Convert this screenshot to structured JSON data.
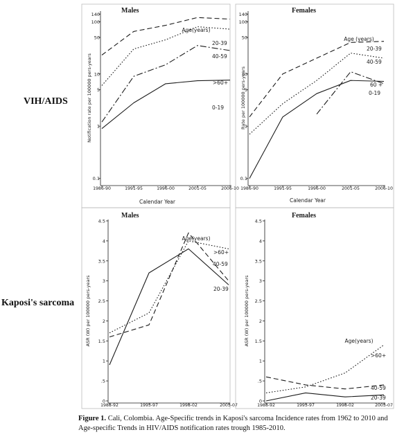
{
  "row_labels": [
    "VIH/AIDS",
    "Kaposi's sarcoma"
  ],
  "caption": {
    "label": "Figure 1.",
    "text": " Cali, Colombia.  Age-Specific trends in Kaposi's sarcoma Incidence rates from 1962 to 2010 and Age-specific Trends in HIV/AIDS notification rates trough 1985-2010."
  },
  "colors": {
    "line": "#1a1a1a",
    "frame": "#bbbbbb",
    "background": "#ffffff"
  },
  "chart_data": [
    {
      "type": "line",
      "panel": "top-left",
      "title": "Males",
      "xlabel": "Calendar Year",
      "ylabel": "Notification rate per 100000 pers-years",
      "yscale": "log",
      "ylim": [
        0.08,
        150
      ],
      "yticks": [
        0.1,
        1,
        5,
        10,
        50,
        100,
        140
      ],
      "categories": [
        "1986-90",
        "1991-95",
        "1996-00",
        "2001-05",
        "2006-10"
      ],
      "legend_title": "Age(years)",
      "series": [
        {
          "name": "20-39",
          "style": "dashed",
          "values": [
            23,
            65,
            85,
            120,
            112
          ]
        },
        {
          "name": "40-59",
          "style": "dotted",
          "values": [
            6,
            30,
            45,
            80,
            72
          ]
        },
        {
          "name": ">60+",
          "style": "dashdot",
          "values": [
            1.2,
            9,
            15,
            35,
            28
          ]
        },
        {
          "name": "0-19",
          "style": "solid",
          "values": [
            0.9,
            2.8,
            6.5,
            7.4,
            7.6
          ]
        }
      ]
    },
    {
      "type": "line",
      "panel": "top-right",
      "title": "Females",
      "xlabel": "Calendar Year",
      "ylabel": "Rate per 100000 pers-years",
      "yscale": "log",
      "ylim": [
        0.08,
        150
      ],
      "yticks": [
        0.1,
        1,
        5,
        10,
        50,
        100,
        140
      ],
      "categories": [
        "1986-90",
        "1991-95",
        "1996-00",
        "2001-05",
        "2006-10"
      ],
      "legend_title": "Age (years)",
      "series": [
        {
          "name": "20-39",
          "style": "dashed",
          "values": [
            1.5,
            10,
            20,
            40,
            42
          ]
        },
        {
          "name": "40-59",
          "style": "dotted",
          "values": [
            0.7,
            2.7,
            7.5,
            25,
            20
          ]
        },
        {
          "name": "60 +",
          "style": "dashdot",
          "values": [
            null,
            null,
            1.7,
            11,
            6.5
          ]
        },
        {
          "name": "0-19",
          "style": "solid",
          "values": [
            0.1,
            1.5,
            4.2,
            7.5,
            7.2
          ]
        }
      ]
    },
    {
      "type": "line",
      "panel": "bottom-left",
      "title": "Males",
      "xlabel": "",
      "ylabel": "ASR (W) per 100000 pers-years",
      "yscale": "linear",
      "ylim": [
        0,
        4.5
      ],
      "yticks": [
        0,
        0.5,
        1,
        1.5,
        2,
        2.5,
        3,
        3.5,
        4,
        4.5
      ],
      "categories": [
        "1988-92",
        "1993-97",
        "1998-02",
        "2003-07"
      ],
      "legend_title": "Age(years)",
      "series": [
        {
          "name": ">60+",
          "style": "dotted",
          "values": [
            1.7,
            2.2,
            4.0,
            3.8
          ]
        },
        {
          "name": "40-59",
          "style": "dashed",
          "values": [
            1.6,
            1.9,
            4.2,
            3.0
          ]
        },
        {
          "name": "20-39",
          "style": "solid",
          "values": [
            0.9,
            3.2,
            3.8,
            2.9
          ]
        }
      ]
    },
    {
      "type": "line",
      "panel": "bottom-right",
      "title": "Females",
      "xlabel": "",
      "ylabel": "ASR (W) per 100000 pers-years",
      "yscale": "linear",
      "ylim": [
        0,
        4.5
      ],
      "yticks": [
        0,
        0.5,
        1,
        1.5,
        2,
        2.5,
        3,
        3.5,
        4,
        4.5
      ],
      "categories": [
        "1988-92",
        "1993-97",
        "1998-02",
        "2003-07"
      ],
      "legend_title": "Age(years)",
      "series": [
        {
          "name": ">60+",
          "style": "dotted",
          "values": [
            0.2,
            0.35,
            0.7,
            1.4
          ]
        },
        {
          "name": "40-59",
          "style": "dashed",
          "values": [
            0.6,
            0.4,
            0.3,
            0.4
          ]
        },
        {
          "name": "20-39",
          "style": "solid",
          "values": [
            0.0,
            0.2,
            0.1,
            0.15
          ]
        }
      ]
    }
  ]
}
